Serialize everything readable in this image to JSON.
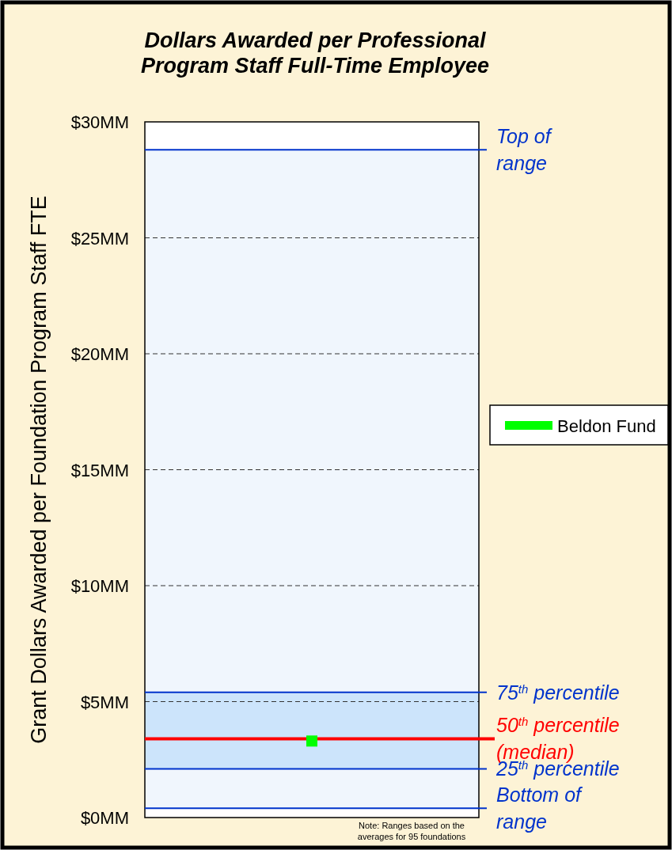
{
  "chart_data": {
    "type": "scatter",
    "title": "Dollars Awarded per Professional Program Staff Full-Time Employee",
    "ylabel": "Grant Dollars Awarded per Foundation Program Staff FTE",
    "categories": [
      null
    ],
    "series": [
      {
        "name": "Beldon Fund",
        "color": "#00ff00",
        "values": [
          3.3
        ]
      }
    ],
    "bands": [
      {
        "axis": "y",
        "from": 0.4,
        "to": 28.8,
        "color": "#f0f6fd"
      },
      {
        "axis": "y",
        "from": 2.1,
        "to": 5.4,
        "color": "#cce4fb"
      }
    ],
    "ref_lines": [
      {
        "axis": "y",
        "value": 28.8,
        "label": "Top of\nrange",
        "color": "#0033cc"
      },
      {
        "axis": "y",
        "value": 5.4,
        "label": "75$^{th}$ percentile",
        "color": "#0033cc"
      },
      {
        "axis": "y",
        "value": 3.4,
        "label": "50$^{th}$ percentile\n(median)",
        "color": "#ff0000"
      },
      {
        "axis": "y",
        "value": 2.1,
        "label": "25$^{th}$ percentile",
        "color": "#0033cc"
      },
      {
        "axis": "y",
        "value": 0.4,
        "label": "Bottom of\nrange",
        "color": "#0033cc"
      }
    ],
    "ylim": [
      0,
      30
    ],
    "yticks": [
      {
        "value": 0,
        "label": "$0MM"
      },
      {
        "value": 5,
        "label": "$5MM"
      },
      {
        "value": 10,
        "label": "$10MM"
      },
      {
        "value": 15,
        "label": "$15MM"
      },
      {
        "value": 20,
        "label": "$20MM"
      },
      {
        "value": 25,
        "label": "$25MM"
      },
      {
        "value": 30,
        "label": "$30MM"
      }
    ],
    "grid": "y",
    "legend": "right",
    "marker": "square",
    "annotations": [
      "Note: Ranges based on the averages for 95 foundations"
    ]
  }
}
